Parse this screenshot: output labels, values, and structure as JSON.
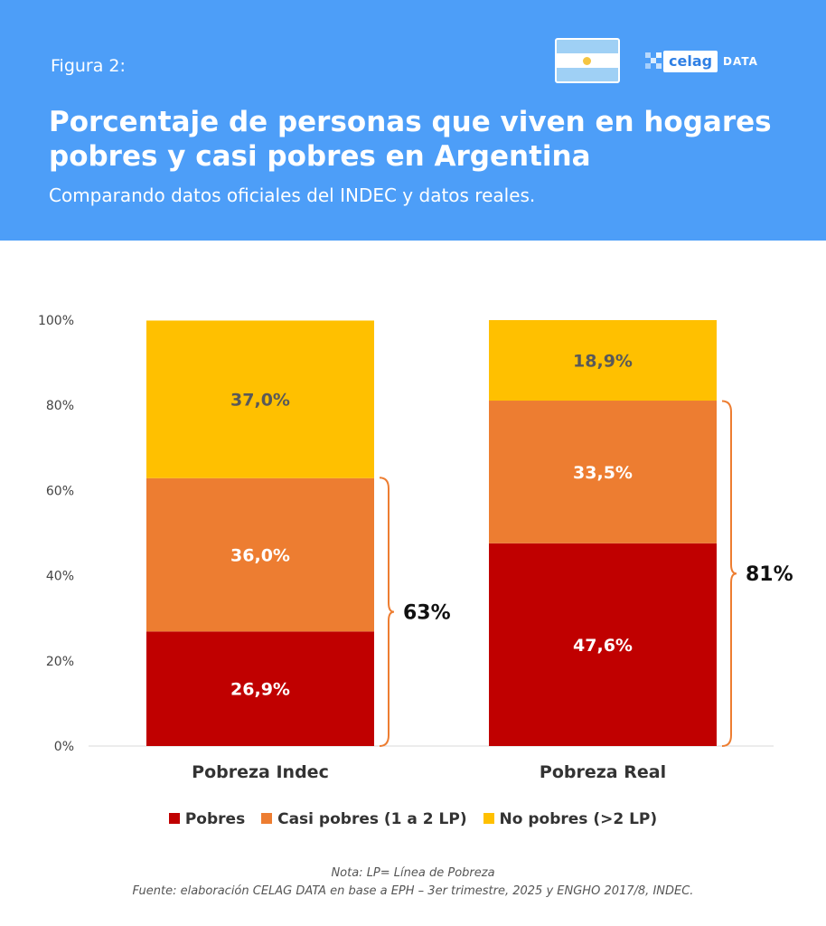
{
  "header": {
    "figure_label": "Figura 2:",
    "title": "Porcentaje de personas que viven en hogares pobres y casi pobres en Argentina",
    "subtitle": "Comparando datos oficiales del INDEC y datos reales.",
    "logo_text": "celag",
    "logo_suffix": "DATA",
    "flag_icon": "argentina-flag-icon"
  },
  "chart_data": {
    "type": "bar",
    "stacked": true,
    "categories": [
      "Pobreza Indec",
      "Pobreza Real"
    ],
    "series": [
      {
        "name": "Pobres",
        "color": "#c00000",
        "values": [
          26.9,
          47.6
        ],
        "labels": [
          "26,9%",
          "47,6%"
        ],
        "label_color": "#ffffff"
      },
      {
        "name": "Casi pobres (1 a 2 LP)",
        "color": "#ed7d31",
        "values": [
          36.0,
          33.5
        ],
        "labels": [
          "36,0%",
          "33,5%"
        ],
        "label_color": "#ffffff"
      },
      {
        "name": "No pobres (>2 LP)",
        "color": "#ffc000",
        "values": [
          37.0,
          18.9
        ],
        "labels": [
          "37,0%",
          "18,9%"
        ],
        "label_color": "#595959"
      }
    ],
    "yticks": [
      "0%",
      "20%",
      "40%",
      "60%",
      "80%",
      "100%"
    ],
    "ylim": [
      0,
      100
    ],
    "brackets": [
      {
        "category": "Pobreza Indec",
        "value": 63,
        "label": "63%"
      },
      {
        "category": "Pobreza Real",
        "value": 81,
        "label": "81%"
      }
    ],
    "bracket_color": "#ed7d31",
    "legend_position": "bottom"
  },
  "legend": [
    {
      "label": "Pobres",
      "color": "#c00000"
    },
    {
      "label": "Casi pobres (1 a 2 LP)",
      "color": "#ed7d31"
    },
    {
      "label": "No pobres (>2 LP)",
      "color": "#ffc000"
    }
  ],
  "footer": {
    "note": "Nota: LP= Línea de Pobreza",
    "source": "Fuente: elaboración CELAG DATA en base a EPH – 3er trimestre, 2025 y ENGHO 2017/8, INDEC."
  }
}
